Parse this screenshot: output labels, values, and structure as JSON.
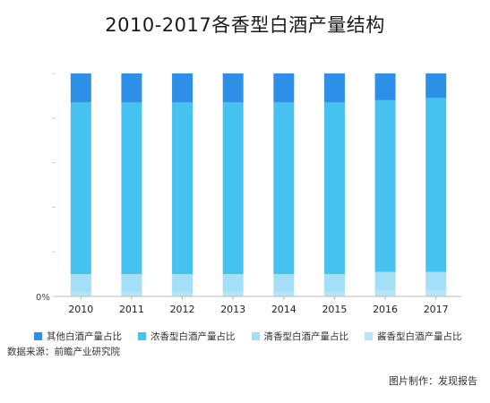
{
  "chart_data": {
    "type": "bar",
    "stacked": true,
    "percent": true,
    "title": "2010-2017各香型白酒产量结构",
    "categories": [
      "2010",
      "2011",
      "2012",
      "2013",
      "2014",
      "2015",
      "2016",
      "2017"
    ],
    "ylim": [
      0,
      100
    ],
    "y_tick_label": "0%",
    "series": [
      {
        "name": "酱香型白酒产量占比",
        "color": "#b3e6f7",
        "values": [
          2,
          2,
          2,
          2,
          2,
          2,
          3,
          3
        ]
      },
      {
        "name": "清香型白酒产量占比",
        "color": "#a3dff6",
        "values": [
          8,
          8,
          8,
          8,
          8,
          8,
          8,
          8
        ]
      },
      {
        "name": "浓香型白酒产量占比",
        "color": "#45c2f0",
        "values": [
          77,
          77,
          77,
          77,
          77,
          77,
          77,
          78
        ]
      },
      {
        "name": "其他白酒产量占比",
        "color": "#2d8fe8",
        "values": [
          13,
          13,
          13,
          13,
          13,
          13,
          12,
          11
        ]
      }
    ],
    "legend_order": [
      "其他白酒产量占比",
      "浓香型白酒产量占比",
      "清香型白酒产量占比",
      "酱香型白酒产量占比"
    ],
    "legend_position": "bottom",
    "grid": false
  },
  "source": "数据来源：前瞻产业研究院",
  "credit": "图片制作：发现报告"
}
